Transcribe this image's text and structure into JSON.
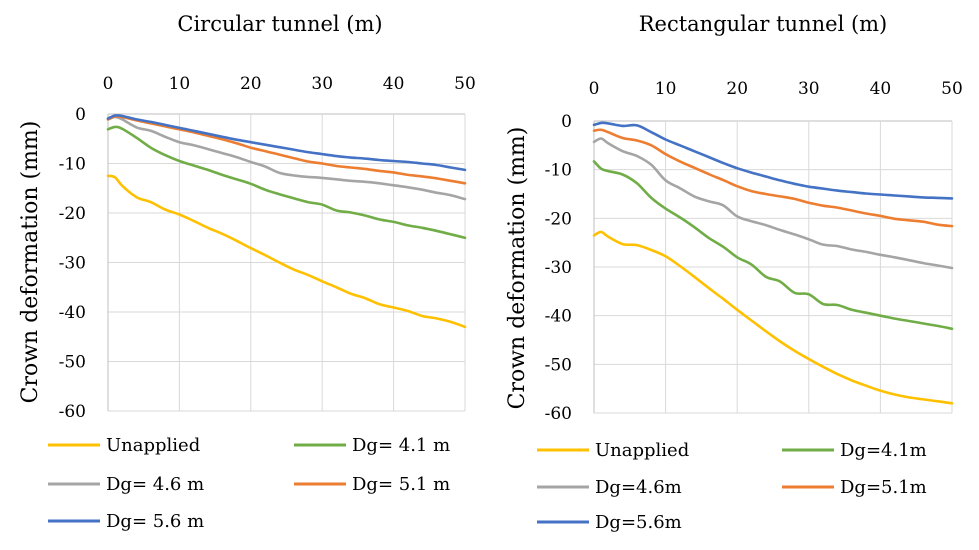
{
  "chart_data": [
    {
      "type": "line",
      "title": "Circular tunnel (m)",
      "ylabel": "Crown deformation (mm)",
      "xlabel": "",
      "xlim": [
        0,
        50
      ],
      "ylim": [
        -60,
        0
      ],
      "xticks": [
        0,
        10,
        20,
        30,
        40,
        50
      ],
      "yticks": [
        0,
        -10,
        -20,
        -30,
        -40,
        -50,
        -60
      ],
      "grid": true,
      "legend_position": "bottom",
      "series": [
        {
          "name": "Unapplied",
          "color": "#FFC000",
          "x": [
            0,
            1,
            2,
            4,
            6,
            8,
            10,
            12,
            14,
            16,
            18,
            20,
            22,
            24,
            26,
            28,
            30,
            32,
            34,
            36,
            38,
            40,
            42,
            44,
            46,
            48,
            50
          ],
          "y": [
            -12.5,
            -12.8,
            -14.5,
            -16.8,
            -17.8,
            -19.3,
            -20.3,
            -21.6,
            -23.0,
            -24.2,
            -25.6,
            -27.1,
            -28.5,
            -30.0,
            -31.4,
            -32.5,
            -33.8,
            -35.0,
            -36.3,
            -37.2,
            -38.4,
            -39.1,
            -39.8,
            -40.8,
            -41.3,
            -42.0,
            -43.0
          ]
        },
        {
          "name": "Dg= 4.1 m",
          "color": "#70AD47",
          "x": [
            0,
            1,
            2,
            4,
            6,
            8,
            10,
            12,
            14,
            16,
            18,
            20,
            22,
            24,
            26,
            28,
            30,
            32,
            34,
            36,
            38,
            40,
            42,
            44,
            46,
            48,
            50
          ],
          "y": [
            -3.1,
            -2.6,
            -3.0,
            -4.8,
            -6.8,
            -8.3,
            -9.5,
            -10.4,
            -11.3,
            -12.3,
            -13.2,
            -14.1,
            -15.3,
            -16.2,
            -17.0,
            -17.8,
            -18.3,
            -19.5,
            -19.9,
            -20.5,
            -21.3,
            -21.8,
            -22.5,
            -23.0,
            -23.6,
            -24.3,
            -25.0
          ]
        },
        {
          "name": "Dg= 4.6 m",
          "color": "#A5A5A5",
          "x": [
            0,
            1,
            2,
            4,
            6,
            8,
            10,
            12,
            14,
            16,
            18,
            20,
            22,
            24,
            26,
            28,
            30,
            32,
            34,
            36,
            38,
            40,
            42,
            44,
            46,
            48,
            50
          ],
          "y": [
            -1.1,
            -0.6,
            -1.1,
            -2.7,
            -3.4,
            -4.6,
            -5.7,
            -6.3,
            -7.1,
            -7.9,
            -8.7,
            -9.7,
            -10.6,
            -11.9,
            -12.4,
            -12.7,
            -12.9,
            -13.2,
            -13.5,
            -13.7,
            -14.0,
            -14.4,
            -14.8,
            -15.3,
            -15.9,
            -16.4,
            -17.2
          ]
        },
        {
          "name": "Dg= 5.1 m",
          "color": "#ED7D31",
          "x": [
            0,
            1,
            2,
            4,
            6,
            8,
            10,
            12,
            14,
            16,
            18,
            20,
            22,
            24,
            26,
            28,
            30,
            32,
            34,
            36,
            38,
            40,
            42,
            44,
            46,
            48,
            50
          ],
          "y": [
            -1.1,
            -0.5,
            -0.6,
            -1.3,
            -1.9,
            -2.5,
            -3.1,
            -3.7,
            -4.4,
            -5.1,
            -5.9,
            -6.8,
            -7.5,
            -8.2,
            -8.9,
            -9.6,
            -10.0,
            -10.5,
            -10.8,
            -11.1,
            -11.5,
            -11.8,
            -12.3,
            -12.6,
            -13.0,
            -13.5,
            -14.0
          ]
        },
        {
          "name": "Dg= 5.6 m",
          "color": "#4472C4",
          "x": [
            0,
            1,
            2,
            4,
            6,
            8,
            10,
            12,
            14,
            16,
            18,
            20,
            22,
            24,
            26,
            28,
            30,
            32,
            34,
            36,
            38,
            40,
            42,
            44,
            46,
            48,
            50
          ],
          "y": [
            -0.9,
            -0.3,
            -0.4,
            -1.1,
            -1.6,
            -2.2,
            -2.8,
            -3.4,
            -4.0,
            -4.6,
            -5.2,
            -5.7,
            -6.2,
            -6.7,
            -7.2,
            -7.7,
            -8.1,
            -8.5,
            -8.8,
            -9.0,
            -9.3,
            -9.5,
            -9.7,
            -10.0,
            -10.3,
            -10.8,
            -11.3
          ]
        }
      ]
    },
    {
      "type": "line",
      "title": "Rectangular tunnel (m)",
      "ylabel": "Crown deformation (mm)",
      "xlabel": "",
      "xlim": [
        0,
        50
      ],
      "ylim": [
        -60,
        0
      ],
      "xticks": [
        0,
        10,
        20,
        30,
        40,
        50
      ],
      "yticks": [
        0,
        -10,
        -20,
        -30,
        -40,
        -50,
        -60
      ],
      "grid": true,
      "legend_position": "bottom",
      "series": [
        {
          "name": "Unapplied",
          "color": "#FFC000",
          "x": [
            0,
            1,
            2,
            4,
            6,
            8,
            10,
            12,
            14,
            16,
            18,
            20,
            22,
            24,
            26,
            28,
            30,
            32,
            34,
            36,
            38,
            40,
            42,
            44,
            46,
            48,
            50
          ],
          "y": [
            -23.5,
            -22.8,
            -23.8,
            -25.3,
            -25.5,
            -26.5,
            -27.8,
            -29.8,
            -32.0,
            -34.3,
            -36.5,
            -38.8,
            -41.0,
            -43.2,
            -45.3,
            -47.2,
            -48.9,
            -50.5,
            -52.0,
            -53.3,
            -54.4,
            -55.4,
            -56.2,
            -56.8,
            -57.2,
            -57.6,
            -58.0
          ]
        },
        {
          "name": "Dg=4.1m",
          "color": "#70AD47",
          "x": [
            0,
            1,
            2,
            4,
            6,
            8,
            10,
            12,
            14,
            16,
            18,
            20,
            22,
            24,
            26,
            28,
            30,
            32,
            34,
            36,
            38,
            40,
            42,
            44,
            46,
            48,
            50
          ],
          "y": [
            -8.3,
            -9.8,
            -10.3,
            -11.0,
            -12.8,
            -15.8,
            -18.0,
            -19.8,
            -21.8,
            -24.0,
            -25.8,
            -28.0,
            -29.5,
            -32.0,
            -33.0,
            -35.3,
            -35.6,
            -37.6,
            -37.8,
            -38.8,
            -39.4,
            -40.0,
            -40.6,
            -41.1,
            -41.6,
            -42.1,
            -42.7
          ]
        },
        {
          "name": "Dg=4.6m",
          "color": "#A5A5A5",
          "x": [
            0,
            1,
            2,
            4,
            6,
            8,
            10,
            12,
            14,
            16,
            18,
            20,
            22,
            24,
            26,
            28,
            30,
            32,
            34,
            36,
            38,
            40,
            42,
            44,
            46,
            48,
            50
          ],
          "y": [
            -4.3,
            -3.6,
            -4.6,
            -6.2,
            -7.2,
            -9.0,
            -12.2,
            -13.8,
            -15.5,
            -16.5,
            -17.3,
            -19.6,
            -20.6,
            -21.4,
            -22.4,
            -23.3,
            -24.3,
            -25.4,
            -25.7,
            -26.4,
            -26.9,
            -27.5,
            -28.0,
            -28.6,
            -29.2,
            -29.7,
            -30.2
          ]
        },
        {
          "name": "Dg=5.1m",
          "color": "#ED7D31",
          "x": [
            0,
            1,
            2,
            4,
            6,
            8,
            10,
            12,
            14,
            16,
            18,
            20,
            22,
            24,
            26,
            28,
            30,
            32,
            34,
            36,
            38,
            40,
            42,
            44,
            46,
            48,
            50
          ],
          "y": [
            -2.0,
            -1.8,
            -2.3,
            -3.5,
            -4.0,
            -5.0,
            -6.8,
            -8.3,
            -9.6,
            -10.9,
            -12.1,
            -13.4,
            -14.4,
            -15.0,
            -15.5,
            -16.0,
            -16.8,
            -17.4,
            -17.8,
            -18.4,
            -19.0,
            -19.5,
            -20.1,
            -20.4,
            -20.7,
            -21.3,
            -21.6
          ]
        },
        {
          "name": "Dg=5.6m",
          "color": "#4472C4",
          "x": [
            0,
            1,
            2,
            4,
            6,
            8,
            10,
            12,
            14,
            16,
            18,
            20,
            22,
            24,
            26,
            28,
            30,
            32,
            34,
            36,
            38,
            40,
            42,
            44,
            46,
            48,
            50
          ],
          "y": [
            -0.8,
            -0.4,
            -0.5,
            -1.0,
            -0.9,
            -2.3,
            -3.8,
            -5.0,
            -6.2,
            -7.4,
            -8.6,
            -9.7,
            -10.6,
            -11.4,
            -12.2,
            -12.9,
            -13.5,
            -13.9,
            -14.3,
            -14.6,
            -14.9,
            -15.1,
            -15.3,
            -15.5,
            -15.7,
            -15.8,
            -15.9
          ]
        }
      ]
    }
  ]
}
